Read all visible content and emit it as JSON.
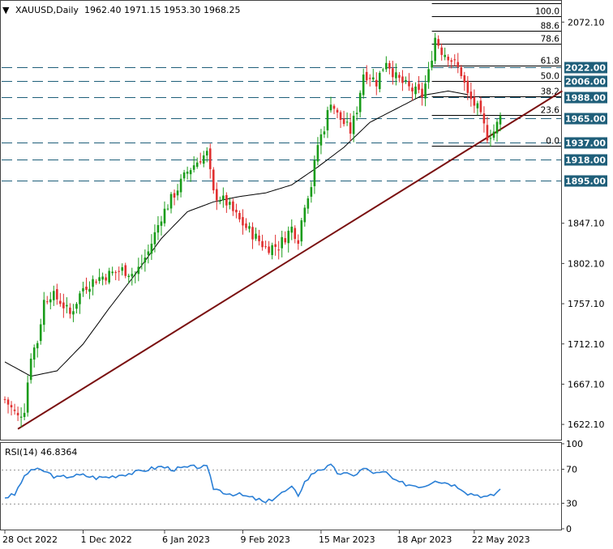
{
  "chart_data": [
    {
      "type": "candlestick",
      "symbol_header": "XAUUSD,Daily",
      "ohlc_header": "1962.40 1971.15 1953.30 1968.25",
      "ylim": [
        1605,
        2095
      ],
      "y_ticks": [
        {
          "label": "2072.10",
          "value": 2072.1
        },
        {
          "label": "1847.10",
          "value": 1847.1
        },
        {
          "label": "1802.10",
          "value": 1802.1
        },
        {
          "label": "1757.10",
          "value": 1757.1
        },
        {
          "label": "1712.10",
          "value": 1712.1
        },
        {
          "label": "1667.10",
          "value": 1667.1
        },
        {
          "label": "1622.10",
          "value": 1622.1
        }
      ],
      "x_ticks": [
        {
          "label": "28 Oct 2022",
          "index": 0
        },
        {
          "label": "1 Dec 2022",
          "index": 24
        },
        {
          "label": "6 Jan 2023",
          "index": 49
        },
        {
          "label": "9 Feb 2023",
          "index": 73
        },
        {
          "label": "15 Mar 2023",
          "index": 97
        },
        {
          "label": "18 Apr 2023",
          "index": 121
        },
        {
          "label": "22 May 2023",
          "index": 144
        }
      ],
      "levels": [
        {
          "label": "2022.00",
          "value": 2022
        },
        {
          "label": "2006.00",
          "value": 2006
        },
        {
          "label": "1988.00",
          "value": 1988
        },
        {
          "label": "1965.00",
          "value": 1965
        },
        {
          "label": "1937.00",
          "value": 1937
        },
        {
          "label": "1918.00",
          "value": 1918
        },
        {
          "label": "1895.00",
          "value": 1895
        }
      ],
      "fibonacci": {
        "high": 2079,
        "low": 1934,
        "levels": [
          {
            "label": "100.0",
            "ratio": 1.0
          },
          {
            "label": "88.6",
            "ratio": 0.886
          },
          {
            "label": "78.6",
            "ratio": 0.786
          },
          {
            "label": "61.8",
            "ratio": 0.618
          },
          {
            "label": "50.0",
            "ratio": 0.5
          },
          {
            "label": "38.2",
            "ratio": 0.382
          },
          {
            "label": "23.6",
            "ratio": 0.236
          },
          {
            "label": "0.0",
            "ratio": 0.0
          }
        ]
      },
      "trendline": {
        "start": {
          "index": 4,
          "value": 1617
        },
        "end": {
          "index": 171,
          "value": 1995
        }
      },
      "moving_average_anchors": [
        [
          0,
          1692
        ],
        [
          8,
          1676
        ],
        [
          16,
          1682
        ],
        [
          24,
          1712
        ],
        [
          32,
          1752
        ],
        [
          40,
          1790
        ],
        [
          48,
          1830
        ],
        [
          56,
          1860
        ],
        [
          64,
          1871
        ],
        [
          72,
          1877
        ],
        [
          80,
          1881
        ],
        [
          88,
          1890
        ],
        [
          96,
          1910
        ],
        [
          104,
          1932
        ],
        [
          112,
          1960
        ],
        [
          120,
          1975
        ],
        [
          128,
          1990
        ],
        [
          136,
          1995
        ],
        [
          142,
          1991
        ]
      ],
      "path_anchors": [
        [
          0,
          1650
        ],
        [
          4,
          1630
        ],
        [
          6,
          1640
        ],
        [
          8,
          1700
        ],
        [
          10,
          1715
        ],
        [
          12,
          1760
        ],
        [
          14,
          1768
        ],
        [
          17,
          1760
        ],
        [
          20,
          1745
        ],
        [
          24,
          1775
        ],
        [
          28,
          1785
        ],
        [
          32,
          1790
        ],
        [
          36,
          1795
        ],
        [
          40,
          1790
        ],
        [
          44,
          1815
        ],
        [
          48,
          1855
        ],
        [
          52,
          1880
        ],
        [
          56,
          1905
        ],
        [
          60,
          1920
        ],
        [
          62,
          1925
        ],
        [
          64,
          1880
        ],
        [
          68,
          1870
        ],
        [
          72,
          1850
        ],
        [
          76,
          1835
        ],
        [
          80,
          1820
        ],
        [
          84,
          1822
        ],
        [
          88,
          1842
        ],
        [
          90,
          1830
        ],
        [
          92,
          1870
        ],
        [
          94,
          1890
        ],
        [
          96,
          1935
        ],
        [
          98,
          1955
        ],
        [
          100,
          1985
        ],
        [
          102,
          1968
        ],
        [
          106,
          1950
        ],
        [
          108,
          1975
        ],
        [
          110,
          2015
        ],
        [
          112,
          2012
        ],
        [
          114,
          2005
        ],
        [
          117,
          2030
        ],
        [
          120,
          2010
        ],
        [
          124,
          1998
        ],
        [
          128,
          1990
        ],
        [
          130,
          2015
        ],
        [
          132,
          2055
        ],
        [
          134,
          2040
        ],
        [
          136,
          2035
        ],
        [
          140,
          2015
        ],
        [
          142,
          1990
        ],
        [
          145,
          1975
        ],
        [
          148,
          1945
        ],
        [
          150,
          1950
        ],
        [
          152,
          1965
        ]
      ]
    },
    {
      "type": "line",
      "title": "RSI(14) 46.8364",
      "ylim": [
        0,
        100
      ],
      "y_ticks": [
        {
          "label": "100",
          "value": 100
        },
        {
          "label": "70",
          "value": 70
        },
        {
          "label": "30",
          "value": 30
        },
        {
          "label": "0",
          "value": 0
        }
      ],
      "guide_levels": [
        70,
        30
      ],
      "anchors": [
        [
          0,
          37
        ],
        [
          3,
          40
        ],
        [
          5,
          55
        ],
        [
          8,
          70
        ],
        [
          12,
          68
        ],
        [
          16,
          60
        ],
        [
          20,
          62
        ],
        [
          24,
          63
        ],
        [
          28,
          60
        ],
        [
          32,
          61
        ],
        [
          36,
          64
        ],
        [
          40,
          66
        ],
        [
          44,
          70
        ],
        [
          48,
          73
        ],
        [
          52,
          70
        ],
        [
          56,
          72
        ],
        [
          60,
          73
        ],
        [
          62,
          72
        ],
        [
          64,
          48
        ],
        [
          68,
          42
        ],
        [
          72,
          40
        ],
        [
          76,
          36
        ],
        [
          78,
          34
        ],
        [
          80,
          30
        ],
        [
          84,
          40
        ],
        [
          88,
          48
        ],
        [
          90,
          40
        ],
        [
          92,
          55
        ],
        [
          94,
          63
        ],
        [
          96,
          70
        ],
        [
          98,
          71
        ],
        [
          100,
          74
        ],
        [
          102,
          66
        ],
        [
          106,
          63
        ],
        [
          108,
          65
        ],
        [
          110,
          71
        ],
        [
          114,
          65
        ],
        [
          117,
          66
        ],
        [
          120,
          55
        ],
        [
          124,
          52
        ],
        [
          128,
          50
        ],
        [
          130,
          53
        ],
        [
          132,
          58
        ],
        [
          134,
          55
        ],
        [
          136,
          54
        ],
        [
          140,
          48
        ],
        [
          142,
          42
        ],
        [
          145,
          40
        ],
        [
          148,
          37
        ],
        [
          150,
          40
        ],
        [
          152,
          46.8
        ]
      ]
    }
  ],
  "colors": {
    "bull": "#1a9c1a",
    "bear": "#e03030",
    "ma": "#000000",
    "trendline": "#7a1010",
    "level_line": "#1f5f7a",
    "level_box": "#1f5f7a",
    "rsi": "#2a7fd6",
    "guide": "#999999",
    "border": "#444444"
  }
}
